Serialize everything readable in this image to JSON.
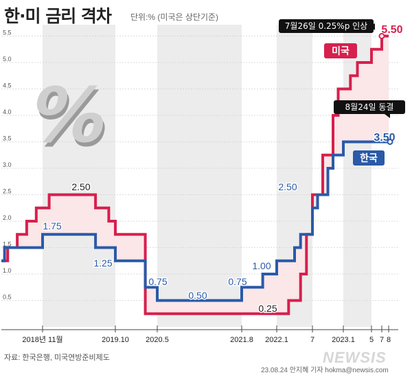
{
  "header": {
    "title": "한·미 금리 격차",
    "unit_note": "단위:% (미국은 상단기준)"
  },
  "source": "자료: 한국은행, 미국연방준비제도",
  "credit": "23.08.24 안지혜 기자 hokma@newsis.com",
  "watermark": "NEWSIS",
  "colors": {
    "us": "#d6204e",
    "korea": "#2a5aa8",
    "gap_fill": "#fbe6e8",
    "band": "#ececec"
  },
  "chart_data": {
    "type": "line",
    "step": true,
    "title": "한·미 금리 격차",
    "x_ticks": [
      "2018년 11월",
      "2019.10",
      "2020.5",
      "2021.8",
      "2022.1",
      "7",
      "2023.1",
      "5",
      "7",
      "8"
    ],
    "y_ticks": [
      "0.5",
      "1.0",
      "1.5",
      "2.0",
      "2.5",
      "3.0",
      "3.5",
      "4.0",
      "4.5",
      "5.0",
      "5.5"
    ],
    "ylim": [
      0,
      5.75
    ],
    "series": [
      {
        "name": "미국",
        "key": "us",
        "points": [
          {
            "x": "2017-10",
            "y": 1.25
          },
          {
            "x": "2017-12",
            "y": 1.5
          },
          {
            "x": "2018-03",
            "y": 1.75
          },
          {
            "x": "2018-06",
            "y": 2.0
          },
          {
            "x": "2018-09",
            "y": 2.25
          },
          {
            "x": "2018-12",
            "y": 2.5
          },
          {
            "x": "2019-07",
            "y": 2.25
          },
          {
            "x": "2019-09",
            "y": 2.0
          },
          {
            "x": "2019-10",
            "y": 1.75
          },
          {
            "x": "2020-03",
            "y": 0.25
          },
          {
            "x": "2022-03",
            "y": 0.5
          },
          {
            "x": "2022-05",
            "y": 1.0
          },
          {
            "x": "2022-06",
            "y": 1.75
          },
          {
            "x": "2022-07",
            "y": 2.5
          },
          {
            "x": "2022-09",
            "y": 3.25
          },
          {
            "x": "2022-11",
            "y": 4.0
          },
          {
            "x": "2022-12",
            "y": 4.5
          },
          {
            "x": "2023-02",
            "y": 4.75
          },
          {
            "x": "2023-03",
            "y": 5.0
          },
          {
            "x": "2023-05",
            "y": 5.25
          },
          {
            "x": "2023-07",
            "y": 5.5
          },
          {
            "x": "2023-08",
            "y": 5.5
          }
        ]
      },
      {
        "name": "한국",
        "key": "korea",
        "points": [
          {
            "x": "2017-10",
            "y": 1.25
          },
          {
            "x": "2017-11",
            "y": 1.5
          },
          {
            "x": "2018-11",
            "y": 1.75
          },
          {
            "x": "2019-07",
            "y": 1.5
          },
          {
            "x": "2019-10",
            "y": 1.25
          },
          {
            "x": "2020-03",
            "y": 0.75
          },
          {
            "x": "2020-05",
            "y": 0.5
          },
          {
            "x": "2021-08",
            "y": 0.75
          },
          {
            "x": "2021-11",
            "y": 1.0
          },
          {
            "x": "2022-01",
            "y": 1.25
          },
          {
            "x": "2022-04",
            "y": 1.5
          },
          {
            "x": "2022-05",
            "y": 1.75
          },
          {
            "x": "2022-07",
            "y": 2.25
          },
          {
            "x": "2022-08",
            "y": 2.5
          },
          {
            "x": "2022-10",
            "y": 3.0
          },
          {
            "x": "2022-11",
            "y": 3.25
          },
          {
            "x": "2023-01",
            "y": 3.5
          },
          {
            "x": "2023-08",
            "y": 3.5
          }
        ]
      }
    ],
    "data_labels": [
      {
        "text": "2.50",
        "series": "us"
      },
      {
        "text": "1.75",
        "series": "korea"
      },
      {
        "text": "1.25",
        "series": "korea"
      },
      {
        "text": "0.75",
        "series": "korea"
      },
      {
        "text": "0.50",
        "series": "korea"
      },
      {
        "text": "0.75",
        "series": "korea"
      },
      {
        "text": "1.00",
        "series": "korea"
      },
      {
        "text": "0.25",
        "series": "us"
      },
      {
        "text": "2.50",
        "series": "korea"
      },
      {
        "text": "5.50",
        "series": "us"
      },
      {
        "text": "3.50",
        "series": "korea"
      }
    ],
    "legend": [
      {
        "label": "미국",
        "series": "us"
      },
      {
        "label": "한국",
        "series": "korea"
      }
    ],
    "annotations": [
      {
        "text": "7월26일 0.25%p 인상",
        "series": "us"
      },
      {
        "text": "8월24일 동결",
        "series": "korea"
      }
    ]
  }
}
